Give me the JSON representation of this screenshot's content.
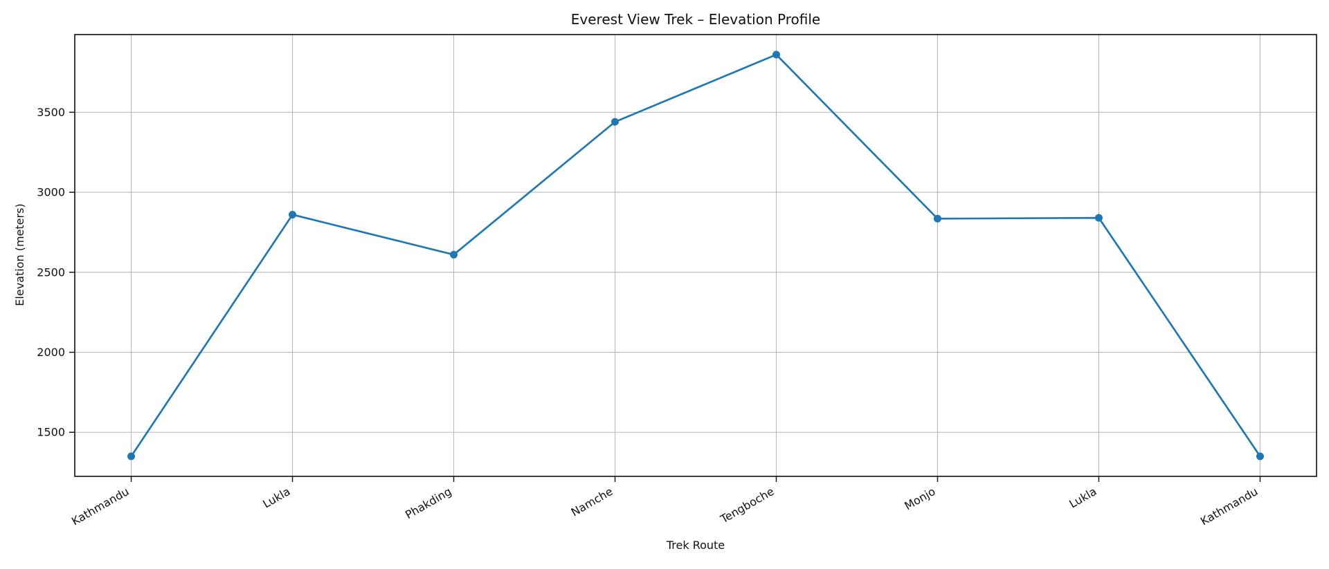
{
  "chart_data": {
    "type": "line",
    "title": "Everest View Trek – Elevation Profile",
    "xlabel": "Trek Route",
    "ylabel": "Elevation (meters)",
    "categories": [
      "Kathmandu",
      "Lukla",
      "Phakding",
      "Namche",
      "Tengboche",
      "Monjo",
      "Lukla",
      "Kathmandu"
    ],
    "series": [
      {
        "name": "Elevation (meters)",
        "values": [
          1350,
          2860,
          2610,
          3440,
          3860,
          2835,
          2840,
          1350
        ]
      }
    ],
    "yticks": [
      1500,
      2000,
      2500,
      3000,
      3500
    ],
    "ylim": [
      1224.5,
      3985.5
    ],
    "x_margin_fraction": 0.35,
    "grid": true,
    "legend": "none",
    "x_tick_rotation_deg": 30,
    "marker": "o",
    "colors": {
      "line": "#1f77b4",
      "marker": "#1f77b4",
      "grid": "#b8b8b8",
      "spine": "#1a1a1a",
      "text": "#111111",
      "background": "#ffffff"
    }
  }
}
